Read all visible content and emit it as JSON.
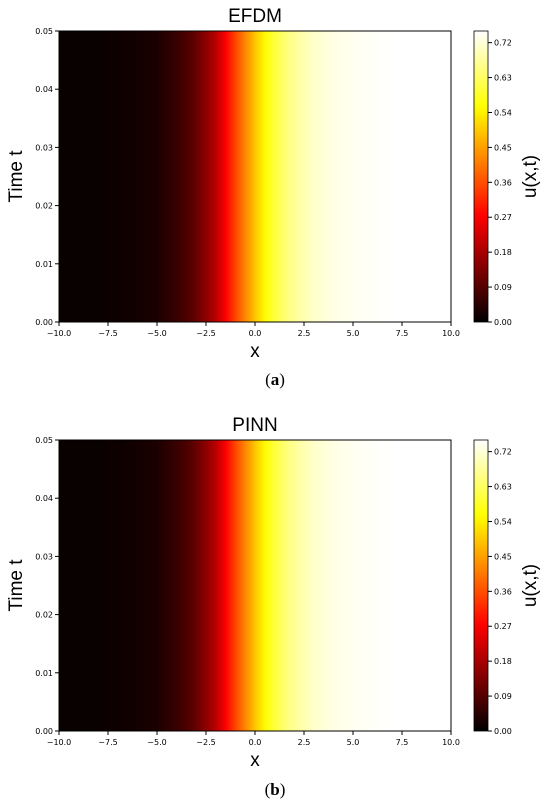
{
  "chart_data": [
    {
      "type": "heatmap",
      "title": "EFDM",
      "xlabel": "x",
      "ylabel": "Time t",
      "colorbar_label": "u(x,t)",
      "colormap": "hot",
      "xlim": [
        -10,
        10
      ],
      "ylim": [
        0,
        0.05
      ],
      "clim": [
        0,
        0.75
      ],
      "x_ticks": [
        "−10.0",
        "−7.5",
        "−5.0",
        "−2.5",
        "0.0",
        "2.5",
        "5.0",
        "7.5",
        "10.0"
      ],
      "y_ticks": [
        "0.00",
        "0.01",
        "0.02",
        "0.03",
        "0.04",
        "0.05"
      ],
      "colorbar_ticks": [
        "0.00",
        "0.09",
        "0.18",
        "0.27",
        "0.36",
        "0.45",
        "0.54",
        "0.63",
        "0.72"
      ],
      "profile_x": [
        -10,
        -9,
        -8,
        -7,
        -6,
        -5,
        -4.5,
        -4,
        -3.5,
        -3,
        -2.5,
        -2,
        -1.5,
        -1,
        -0.5,
        0,
        0.5,
        1,
        1.5,
        2,
        2.5,
        3,
        4,
        5,
        6,
        7,
        8,
        9,
        10
      ],
      "profile_u": [
        0.01,
        0.01,
        0.01,
        0.015,
        0.02,
        0.03,
        0.045,
        0.06,
        0.08,
        0.11,
        0.15,
        0.2,
        0.27,
        0.35,
        0.42,
        0.49,
        0.55,
        0.6,
        0.64,
        0.67,
        0.69,
        0.71,
        0.73,
        0.74,
        0.745,
        0.75,
        0.75,
        0.75,
        0.75
      ],
      "caption": "a"
    },
    {
      "type": "heatmap",
      "title": "PINN",
      "xlabel": "x",
      "ylabel": "Time t",
      "colorbar_label": "u(x,t)",
      "colormap": "hot",
      "xlim": [
        -10,
        10
      ],
      "ylim": [
        0,
        0.05
      ],
      "clim": [
        0,
        0.75
      ],
      "x_ticks": [
        "−10.0",
        "−7.5",
        "−5.0",
        "−2.5",
        "0.0",
        "2.5",
        "5.0",
        "7.5",
        "10.0"
      ],
      "y_ticks": [
        "0.00",
        "0.01",
        "0.02",
        "0.03",
        "0.04",
        "0.05"
      ],
      "colorbar_ticks": [
        "0.00",
        "0.09",
        "0.18",
        "0.27",
        "0.36",
        "0.45",
        "0.54",
        "0.63",
        "0.72"
      ],
      "profile_x": [
        -10,
        -9,
        -8,
        -7,
        -6,
        -5,
        -4.5,
        -4,
        -3.5,
        -3,
        -2.5,
        -2,
        -1.5,
        -1,
        -0.5,
        0,
        0.5,
        1,
        1.5,
        2,
        2.5,
        3,
        4,
        5,
        6,
        7,
        8,
        9,
        10
      ],
      "profile_u": [
        0.01,
        0.01,
        0.01,
        0.015,
        0.02,
        0.03,
        0.045,
        0.06,
        0.08,
        0.11,
        0.15,
        0.2,
        0.27,
        0.35,
        0.42,
        0.49,
        0.55,
        0.6,
        0.64,
        0.67,
        0.69,
        0.71,
        0.73,
        0.74,
        0.745,
        0.75,
        0.75,
        0.75,
        0.75
      ],
      "caption": "b"
    }
  ]
}
